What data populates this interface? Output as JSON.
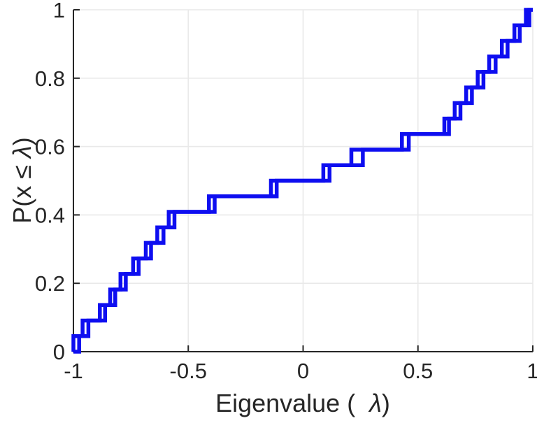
{
  "figure": {
    "background": "#ffffff",
    "axis_color": "#262626",
    "grid_color": "#e9e9e9",
    "tick_label_color": "#262626"
  },
  "chart_data": {
    "type": "line",
    "style": "ecdf-stairs",
    "title": "",
    "xlabel": "Eigenvalue ( λ)",
    "ylabel": "P(x ≤ λ)",
    "xlabel_parts": [
      {
        "text": "Eigenvalue ( "
      },
      {
        "text": "λ",
        "italic": true,
        "dx": 10
      },
      {
        "text": ")"
      }
    ],
    "ylabel_parts": [
      {
        "text": "P(x "
      },
      {
        "text": "≤"
      },
      {
        "text": " "
      },
      {
        "text": "λ",
        "italic": true
      },
      {
        "text": ")"
      }
    ],
    "xlim": [
      -1,
      1
    ],
    "ylim": [
      0,
      1
    ],
    "x_ticks": [
      -1,
      -0.5,
      0,
      0.5,
      1
    ],
    "x_tick_labels": [
      "-1",
      "-0.5",
      "0",
      "0.5",
      "1"
    ],
    "y_ticks": [
      0,
      0.2,
      0.4,
      0.6,
      0.8,
      1
    ],
    "y_tick_labels": [
      "0",
      "0.2",
      "0.4",
      "0.6",
      "0.8",
      "1"
    ],
    "grid": true,
    "legend": "none",
    "line_color": "#0e0ef0",
    "line_width": 5.5,
    "series": [
      {
        "name": "ecdf-curve-1",
        "n_points": 22,
        "step_height": 0.0455,
        "eigenvalues": [
          -1.0,
          -0.96,
          -0.885,
          -0.84,
          -0.795,
          -0.74,
          -0.685,
          -0.635,
          -0.585,
          -0.385,
          -0.14,
          0.088,
          0.21,
          0.43,
          0.615,
          0.66,
          0.71,
          0.76,
          0.81,
          0.865,
          0.92,
          0.97
        ]
      },
      {
        "name": "ecdf-curve-2",
        "n_points": 22,
        "step_height": 0.0455,
        "eigenvalues": [
          -0.975,
          -0.935,
          -0.862,
          -0.818,
          -0.772,
          -0.716,
          -0.662,
          -0.608,
          -0.56,
          -0.41,
          -0.115,
          0.115,
          0.26,
          0.46,
          0.635,
          0.685,
          0.735,
          0.785,
          0.838,
          0.89,
          0.943,
          0.985
        ]
      }
    ]
  }
}
